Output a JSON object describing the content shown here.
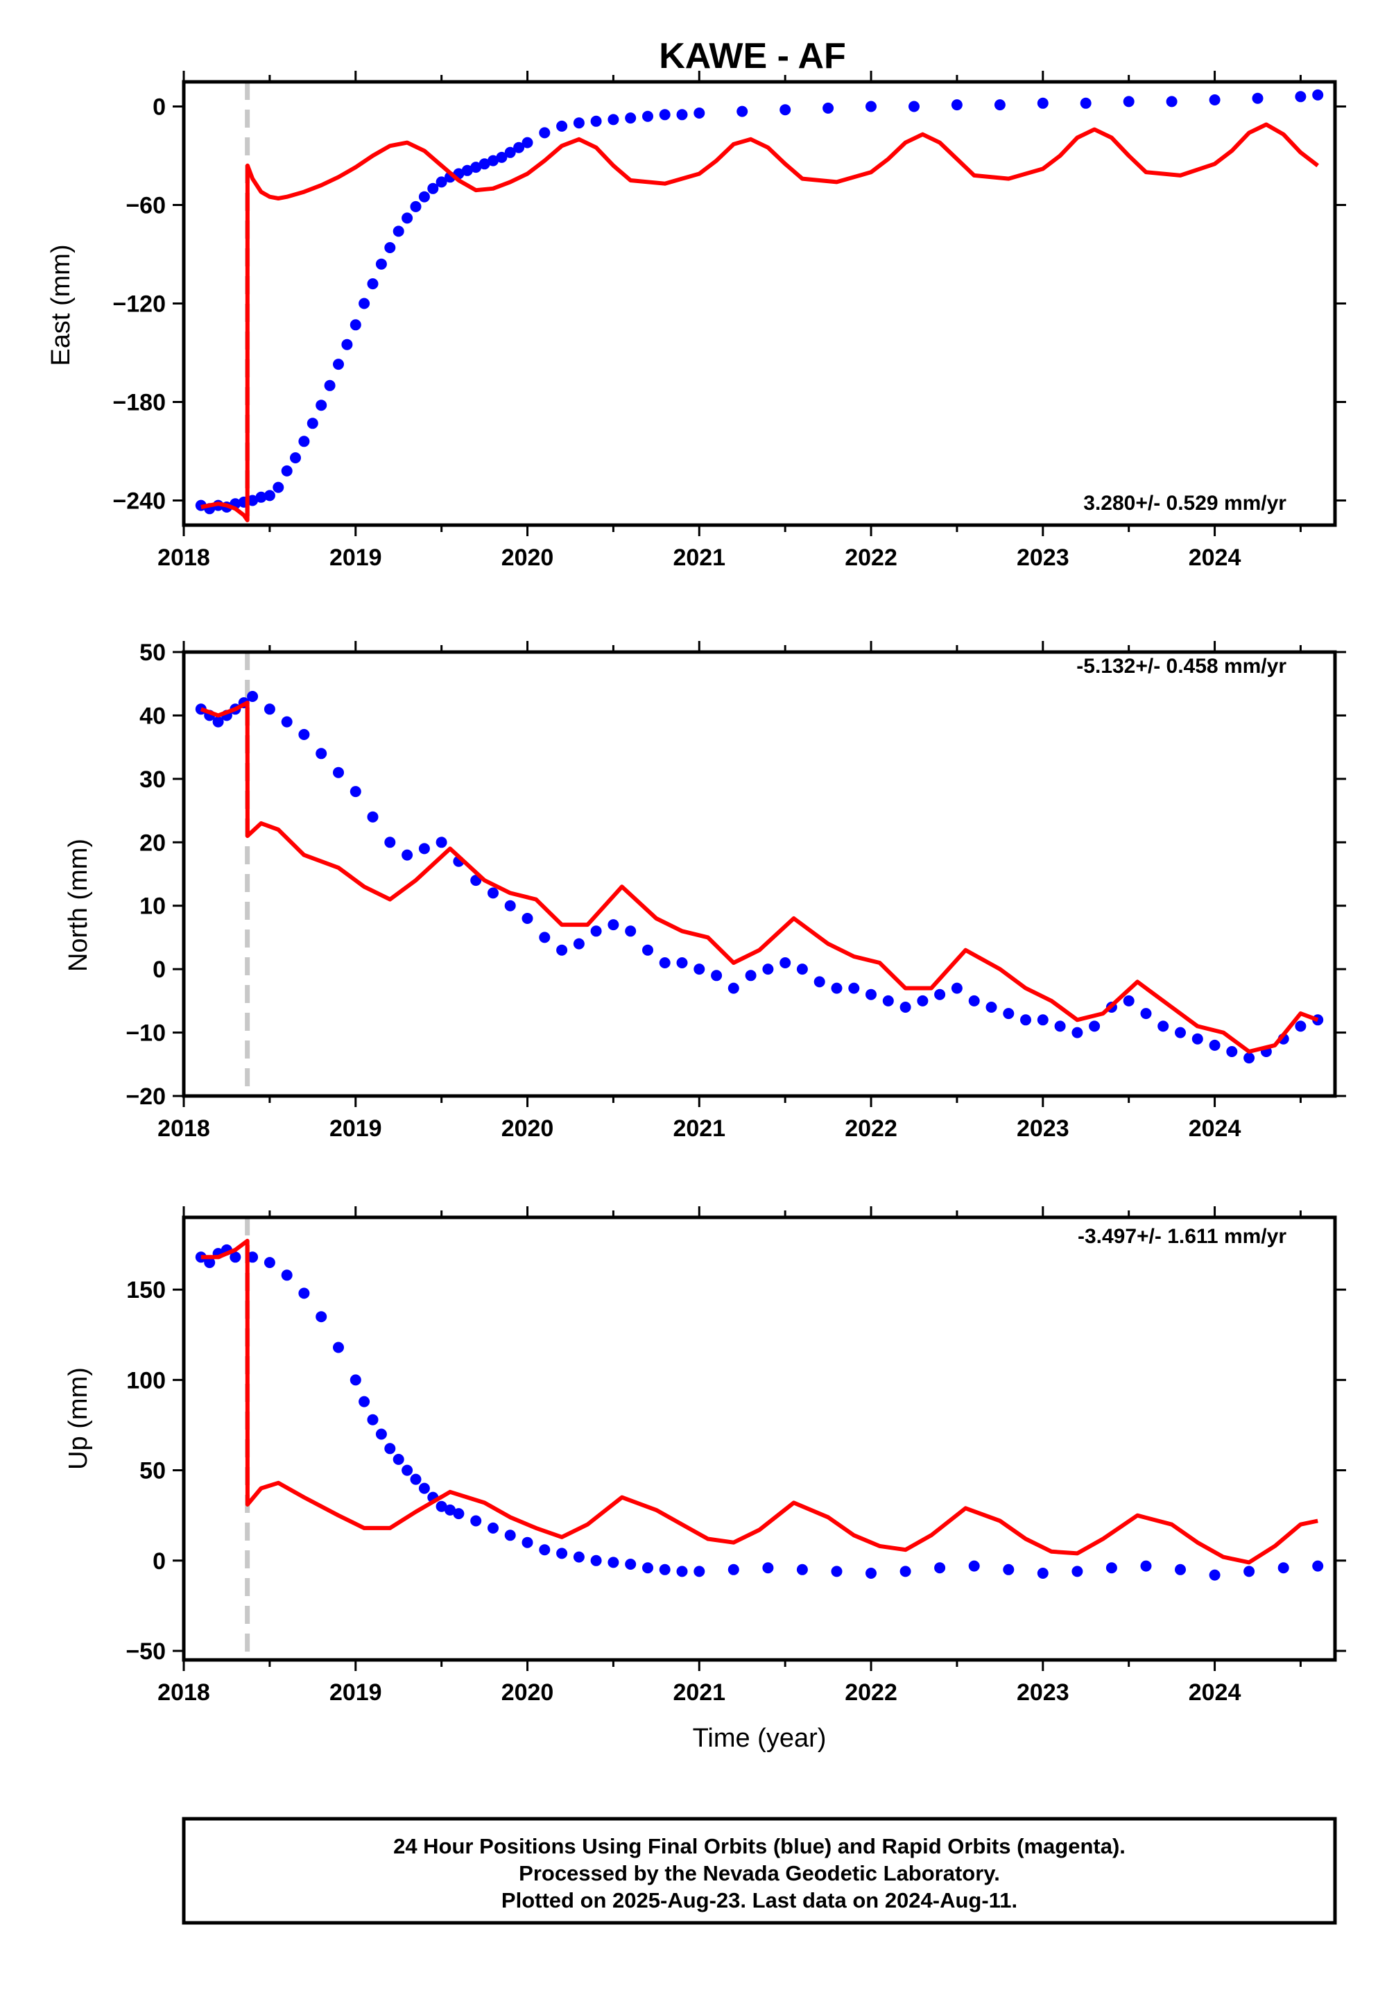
{
  "title": "KAWE - AF",
  "colors": {
    "final_orbits": "#0000ff",
    "model_fit": "#ff0000",
    "event_marker": "#c8c8c8",
    "frame": "#000000"
  },
  "chart_data": [
    {
      "type": "scatter",
      "ylabel": "East (mm)",
      "xlabel": "",
      "xlim": [
        2018.0,
        2024.7
      ],
      "ylim": [
        -255,
        15
      ],
      "yticks": [
        0,
        -60,
        -120,
        -180,
        -240
      ],
      "xticks": [
        2018,
        2019,
        2020,
        2021,
        2022,
        2023,
        2024
      ],
      "rate_label": "3.280+/- 0.529 mm/yr",
      "rate_label_position": "bottom-right",
      "event_x": 2018.37,
      "series": [
        {
          "kind": "points",
          "x": [
            2018.1,
            2018.15,
            2018.2,
            2018.25,
            2018.3,
            2018.35,
            2018.4,
            2018.45,
            2018.5,
            2018.55,
            2018.6,
            2018.65,
            2018.7,
            2018.75,
            2018.8,
            2018.85,
            2018.9,
            2018.95,
            2019.0,
            2019.05,
            2019.1,
            2019.15,
            2019.2,
            2019.25,
            2019.3,
            2019.35,
            2019.4,
            2019.45,
            2019.5,
            2019.55,
            2019.6,
            2019.65,
            2019.7,
            2019.75,
            2019.8,
            2019.85,
            2019.9,
            2019.95,
            2020.0,
            2020.1,
            2020.2,
            2020.3,
            2020.4,
            2020.5,
            2020.6,
            2020.7,
            2020.8,
            2020.9,
            2021.0,
            2021.25,
            2021.5,
            2021.75,
            2022.0,
            2022.25,
            2022.5,
            2022.75,
            2023.0,
            2023.25,
            2023.5,
            2023.75,
            2024.0,
            2024.25,
            2024.5,
            2024.6
          ],
          "y": [
            -243,
            -245,
            -243,
            -244,
            -242,
            -241,
            -240,
            -238,
            -237,
            -232,
            -222,
            -214,
            -204,
            -193,
            -182,
            -170,
            -157,
            -145,
            -133,
            -120,
            -108,
            -96,
            -86,
            -76,
            -68,
            -61,
            -55,
            -50,
            -46,
            -43,
            -41,
            -39,
            -37,
            -35,
            -33,
            -31,
            -28,
            -25,
            -22,
            -16,
            -12,
            -10,
            -9,
            -8,
            -7,
            -6,
            -5,
            -5,
            -4,
            -3,
            -2,
            -1,
            0,
            0,
            1,
            1,
            2,
            2,
            3,
            3,
            4,
            5,
            6,
            7
          ]
        },
        {
          "kind": "model",
          "x": [
            2018.1,
            2018.15,
            2018.2,
            2018.25,
            2018.3,
            2018.35,
            2018.37,
            2018.371,
            2018.4,
            2018.45,
            2018.5,
            2018.55,
            2018.6,
            2018.7,
            2018.8,
            2018.9,
            2019.0,
            2019.1,
            2019.2,
            2019.3,
            2019.4,
            2019.5,
            2019.6,
            2019.7,
            2019.8,
            2019.9,
            2020.0,
            2020.1,
            2020.2,
            2020.3,
            2020.4,
            2020.5,
            2020.6,
            2020.8,
            2021.0,
            2021.1,
            2021.2,
            2021.3,
            2021.4,
            2021.5,
            2021.6,
            2021.8,
            2022.0,
            2022.1,
            2022.2,
            2022.3,
            2022.4,
            2022.5,
            2022.6,
            2022.8,
            2023.0,
            2023.1,
            2023.2,
            2023.3,
            2023.4,
            2023.5,
            2023.6,
            2023.8,
            2024.0,
            2024.1,
            2024.2,
            2024.3,
            2024.4,
            2024.5,
            2024.6
          ],
          "y": [
            -244,
            -243,
            -242,
            -243,
            -245,
            -249,
            -252,
            -36,
            -44,
            -52,
            -55,
            -56,
            -55,
            -52,
            -48,
            -43,
            -37,
            -30,
            -24,
            -22,
            -27,
            -36,
            -45,
            -51,
            -50,
            -46,
            -41,
            -33,
            -24,
            -20,
            -25,
            -36,
            -45,
            -47,
            -41,
            -33,
            -23,
            -20,
            -25,
            -35,
            -44,
            -46,
            -40,
            -32,
            -22,
            -17,
            -22,
            -32,
            -42,
            -44,
            -38,
            -30,
            -19,
            -14,
            -19,
            -30,
            -40,
            -42,
            -35,
            -27,
            -16,
            -11,
            -17,
            -28,
            -36
          ]
        }
      ]
    },
    {
      "type": "scatter",
      "ylabel": "North (mm)",
      "xlabel": "",
      "xlim": [
        2018.0,
        2024.7
      ],
      "ylim": [
        -20,
        50
      ],
      "yticks": [
        50,
        40,
        30,
        20,
        10,
        0,
        -10,
        -20
      ],
      "xticks": [
        2018,
        2019,
        2020,
        2021,
        2022,
        2023,
        2024
      ],
      "rate_label": "-5.132+/- 0.458 mm/yr",
      "rate_label_position": "top-right",
      "event_x": 2018.37,
      "series": [
        {
          "kind": "points",
          "x": [
            2018.1,
            2018.15,
            2018.2,
            2018.25,
            2018.3,
            2018.35,
            2018.4,
            2018.5,
            2018.6,
            2018.7,
            2018.8,
            2018.9,
            2019.0,
            2019.1,
            2019.2,
            2019.3,
            2019.4,
            2019.5,
            2019.6,
            2019.7,
            2019.8,
            2019.9,
            2020.0,
            2020.1,
            2020.2,
            2020.3,
            2020.4,
            2020.5,
            2020.6,
            2020.7,
            2020.8,
            2020.9,
            2021.0,
            2021.1,
            2021.2,
            2021.3,
            2021.4,
            2021.5,
            2021.6,
            2021.7,
            2021.8,
            2021.9,
            2022.0,
            2022.1,
            2022.2,
            2022.3,
            2022.4,
            2022.5,
            2022.6,
            2022.7,
            2022.8,
            2022.9,
            2023.0,
            2023.1,
            2023.2,
            2023.3,
            2023.4,
            2023.5,
            2023.6,
            2023.7,
            2023.8,
            2023.9,
            2024.0,
            2024.1,
            2024.2,
            2024.3,
            2024.4,
            2024.5,
            2024.6
          ],
          "y": [
            41,
            40,
            39,
            40,
            41,
            42,
            43,
            41,
            39,
            37,
            34,
            31,
            28,
            24,
            20,
            18,
            19,
            20,
            17,
            14,
            12,
            10,
            8,
            5,
            3,
            4,
            6,
            7,
            6,
            3,
            1,
            1,
            0,
            -1,
            -3,
            -1,
            0,
            1,
            0,
            -2,
            -3,
            -3,
            -4,
            -5,
            -6,
            -5,
            -4,
            -3,
            -5,
            -6,
            -7,
            -8,
            -8,
            -9,
            -10,
            -9,
            -6,
            -5,
            -7,
            -9,
            -10,
            -11,
            -12,
            -13,
            -14,
            -13,
            -11,
            -9,
            -8
          ]
        },
        {
          "kind": "model",
          "x": [
            2018.1,
            2018.2,
            2018.3,
            2018.37,
            2018.371,
            2018.45,
            2018.55,
            2018.7,
            2018.9,
            2019.05,
            2019.2,
            2019.35,
            2019.55,
            2019.75,
            2019.9,
            2020.05,
            2020.2,
            2020.35,
            2020.55,
            2020.75,
            2020.9,
            2021.05,
            2021.2,
            2021.35,
            2021.55,
            2021.75,
            2021.9,
            2022.05,
            2022.2,
            2022.35,
            2022.55,
            2022.75,
            2022.9,
            2023.05,
            2023.2,
            2023.35,
            2023.55,
            2023.75,
            2023.9,
            2024.05,
            2024.2,
            2024.35,
            2024.5,
            2024.6
          ],
          "y": [
            41,
            40,
            41,
            42,
            21,
            23,
            22,
            18,
            16,
            13,
            11,
            14,
            19,
            14,
            12,
            11,
            7,
            7,
            13,
            8,
            6,
            5,
            1,
            3,
            8,
            4,
            2,
            1,
            -3,
            -3,
            3,
            0,
            -3,
            -5,
            -8,
            -7,
            -2,
            -6,
            -9,
            -10,
            -13,
            -12,
            -7,
            -8
          ]
        }
      ]
    },
    {
      "type": "scatter",
      "ylabel": "Up (mm)",
      "xlabel": "Time (year)",
      "xlim": [
        2018.0,
        2024.7
      ],
      "ylim": [
        -55,
        190
      ],
      "yticks": [
        150,
        100,
        50,
        0,
        -50
      ],
      "xticks": [
        2018,
        2019,
        2020,
        2021,
        2022,
        2023,
        2024
      ],
      "rate_label": "-3.497+/- 1.611 mm/yr",
      "rate_label_position": "top-right",
      "event_x": 2018.37,
      "series": [
        {
          "kind": "points",
          "x": [
            2018.1,
            2018.15,
            2018.2,
            2018.25,
            2018.3,
            2018.4,
            2018.5,
            2018.6,
            2018.7,
            2018.8,
            2018.9,
            2019.0,
            2019.05,
            2019.1,
            2019.15,
            2019.2,
            2019.25,
            2019.3,
            2019.35,
            2019.4,
            2019.45,
            2019.5,
            2019.55,
            2019.6,
            2019.7,
            2019.8,
            2019.9,
            2020.0,
            2020.1,
            2020.2,
            2020.3,
            2020.4,
            2020.5,
            2020.6,
            2020.7,
            2020.8,
            2020.9,
            2021.0,
            2021.2,
            2021.4,
            2021.6,
            2021.8,
            2022.0,
            2022.2,
            2022.4,
            2022.6,
            2022.8,
            2023.0,
            2023.2,
            2023.4,
            2023.6,
            2023.8,
            2024.0,
            2024.2,
            2024.4,
            2024.6
          ],
          "y": [
            168,
            165,
            170,
            172,
            168,
            168,
            165,
            158,
            148,
            135,
            118,
            100,
            88,
            78,
            70,
            62,
            56,
            50,
            45,
            40,
            35,
            30,
            28,
            26,
            22,
            18,
            14,
            10,
            6,
            4,
            2,
            0,
            -1,
            -2,
            -4,
            -5,
            -6,
            -6,
            -5,
            -4,
            -5,
            -6,
            -7,
            -6,
            -4,
            -3,
            -5,
            -7,
            -6,
            -4,
            -3,
            -5,
            -8,
            -6,
            -4,
            -3
          ]
        },
        {
          "kind": "model",
          "x": [
            2018.1,
            2018.2,
            2018.3,
            2018.37,
            2018.371,
            2018.45,
            2018.55,
            2018.7,
            2018.9,
            2019.05,
            2019.2,
            2019.35,
            2019.55,
            2019.75,
            2019.9,
            2020.05,
            2020.2,
            2020.35,
            2020.55,
            2020.75,
            2020.9,
            2021.05,
            2021.2,
            2021.35,
            2021.55,
            2021.75,
            2021.9,
            2022.05,
            2022.2,
            2022.35,
            2022.55,
            2022.75,
            2022.9,
            2023.05,
            2023.2,
            2023.35,
            2023.55,
            2023.75,
            2023.9,
            2024.05,
            2024.2,
            2024.35,
            2024.5,
            2024.6
          ],
          "y": [
            168,
            168,
            172,
            177,
            31,
            40,
            43,
            35,
            25,
            18,
            18,
            27,
            38,
            32,
            24,
            18,
            13,
            20,
            35,
            28,
            20,
            12,
            10,
            17,
            32,
            24,
            14,
            8,
            6,
            14,
            29,
            22,
            12,
            5,
            4,
            12,
            25,
            20,
            10,
            2,
            -1,
            8,
            20,
            22
          ]
        }
      ]
    }
  ],
  "footer": {
    "line1": "24 Hour Positions Using Final Orbits (blue) and Rapid Orbits (magenta).",
    "line2": "Processed by the Nevada Geodetic Laboratory.",
    "line3": "Plotted on 2025-Aug-23. Last data on 2024-Aug-11."
  }
}
